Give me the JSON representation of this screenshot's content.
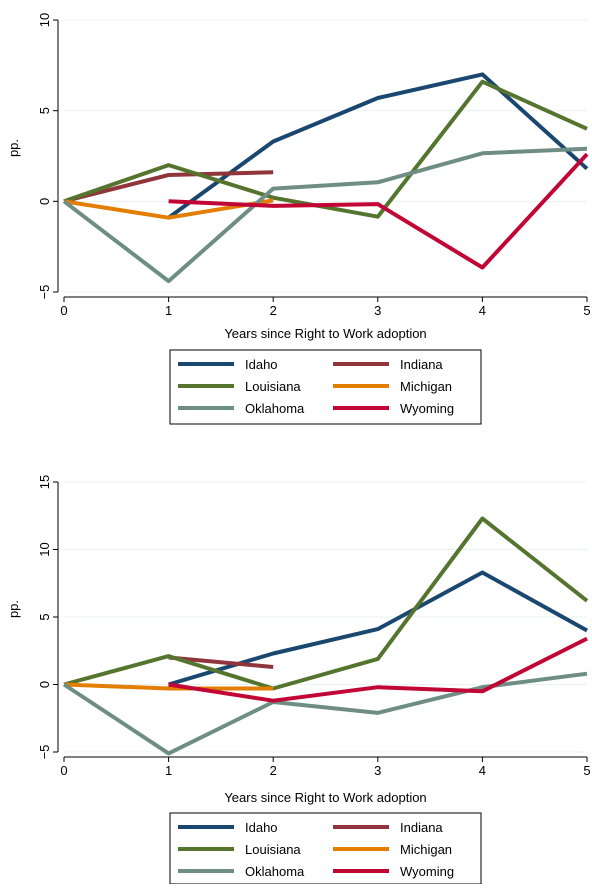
{
  "chart_data": [
    {
      "type": "line",
      "xlabel": "Years since Right to Work adoption",
      "ylabel": "pp.",
      "xlim": [
        0,
        5
      ],
      "ylim": [
        -5,
        10
      ],
      "xticks": [
        "0",
        "1",
        "2",
        "3",
        "4",
        "5"
      ],
      "yticks": [
        "-5",
        "0",
        "5",
        "10"
      ],
      "grid": true,
      "legend_position": "bottom",
      "series": [
        {
          "name": "Idaho",
          "color": "#1a476f",
          "x": [
            1,
            2,
            3,
            4,
            5
          ],
          "values": [
            -0.9,
            3.3,
            5.7,
            7.0,
            1.8
          ]
        },
        {
          "name": "Indiana",
          "color": "#90353b",
          "x": [
            0,
            1,
            2
          ],
          "values": [
            0,
            1.45,
            1.6
          ]
        },
        {
          "name": "Louisiana",
          "color": "#55752f",
          "x": [
            0,
            1,
            2,
            3,
            4,
            5
          ],
          "values": [
            0,
            2.0,
            0.2,
            -0.85,
            6.6,
            4.0
          ]
        },
        {
          "name": "Michigan",
          "color": "#e37e00",
          "x": [
            0,
            1,
            2
          ],
          "values": [
            0,
            -0.9,
            0.05
          ]
        },
        {
          "name": "Oklahoma",
          "color": "#6e8e84",
          "x": [
            0,
            1,
            2,
            3,
            4,
            5
          ],
          "values": [
            0,
            -4.4,
            0.7,
            1.05,
            2.65,
            2.9
          ]
        },
        {
          "name": "Wyoming",
          "color": "#c10534",
          "x": [
            1,
            2,
            3,
            4,
            5
          ],
          "values": [
            0,
            -0.25,
            -0.15,
            -3.65,
            2.6
          ]
        }
      ]
    },
    {
      "type": "line",
      "xlabel": "Years since Right to Work adoption",
      "ylabel": "pp.",
      "xlim": [
        0,
        5
      ],
      "ylim": [
        -5,
        15
      ],
      "xticks": [
        "0",
        "1",
        "2",
        "3",
        "4",
        "5"
      ],
      "yticks": [
        "-5",
        "0",
        "5",
        "10",
        "15"
      ],
      "grid": true,
      "legend_position": "bottom",
      "series": [
        {
          "name": "Idaho",
          "color": "#1a476f",
          "x": [
            1,
            2,
            3,
            4,
            5
          ],
          "values": [
            0,
            2.3,
            4.1,
            8.3,
            4.0
          ]
        },
        {
          "name": "Indiana",
          "color": "#90353b",
          "x": [
            1,
            2
          ],
          "values": [
            2.0,
            1.3
          ]
        },
        {
          "name": "Louisiana",
          "color": "#55752f",
          "x": [
            0,
            1,
            2,
            3,
            4,
            5
          ],
          "values": [
            0,
            2.1,
            -0.3,
            1.9,
            12.3,
            6.2
          ]
        },
        {
          "name": "Michigan",
          "color": "#e37e00",
          "x": [
            0,
            1,
            2
          ],
          "values": [
            0,
            -0.3,
            -0.3
          ]
        },
        {
          "name": "Oklahoma",
          "color": "#6e8e84",
          "x": [
            0,
            1,
            2,
            3,
            4,
            5
          ],
          "values": [
            0,
            -5.1,
            -1.3,
            -2.1,
            -0.2,
            0.8
          ]
        },
        {
          "name": "Wyoming",
          "color": "#c10534",
          "x": [
            1,
            2,
            3,
            4,
            5
          ],
          "values": [
            0,
            -1.2,
            -0.2,
            -0.5,
            3.4
          ]
        }
      ]
    }
  ]
}
